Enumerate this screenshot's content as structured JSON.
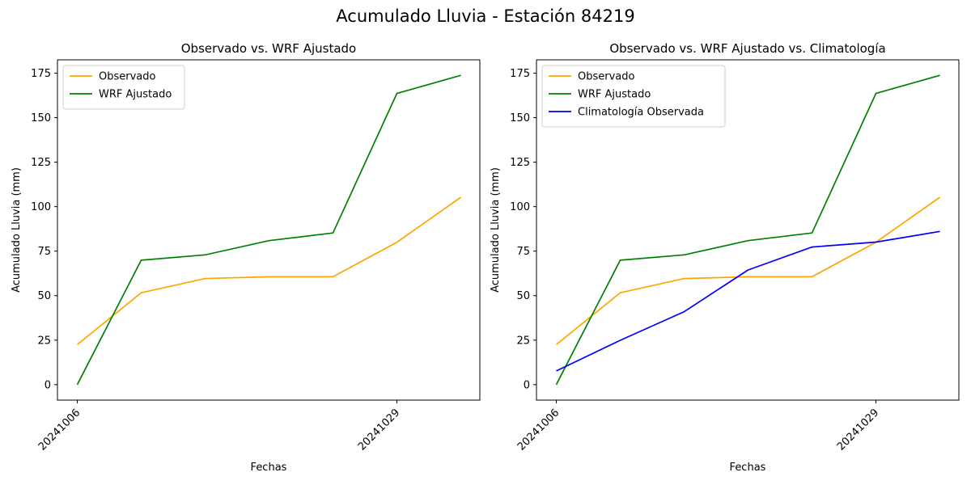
{
  "suptitle": "Acumulado Lluvia - Estación 84219",
  "chart_data": [
    {
      "type": "line",
      "title": "Observado vs. WRF Ajustado",
      "xlabel": "Fechas",
      "ylabel": "Acumulado Lluvia (mm)",
      "x_tick_labels": [
        "20241006",
        "20241029"
      ],
      "y_ticks": [
        0,
        25,
        50,
        75,
        100,
        125,
        150,
        175
      ],
      "ylim": [
        -8.7,
        182.5
      ],
      "legend_position": "upper-left",
      "series": [
        {
          "name": "Observado",
          "color": "#FFA500",
          "values": [
            22.5,
            51.6,
            59.6,
            60.6,
            60.6,
            80.0,
            105.3
          ]
        },
        {
          "name": "WRF Ajustado",
          "color": "#008000",
          "values": [
            0.0,
            69.9,
            72.9,
            80.9,
            85.2,
            163.6,
            173.8
          ]
        }
      ]
    },
    {
      "type": "line",
      "title": "Observado vs. WRF Ajustado vs. Climatología",
      "xlabel": "Fechas",
      "ylabel": "Acumulado Lluvia (mm)",
      "x_tick_labels": [
        "20241006",
        "20241029"
      ],
      "y_ticks": [
        0,
        25,
        50,
        75,
        100,
        125,
        150,
        175
      ],
      "ylim": [
        -8.7,
        182.5
      ],
      "legend_position": "upper-left",
      "series": [
        {
          "name": "Observado",
          "color": "#FFA500",
          "values": [
            22.5,
            51.6,
            59.6,
            60.6,
            60.6,
            80.0,
            105.3
          ]
        },
        {
          "name": "WRF Ajustado",
          "color": "#008000",
          "values": [
            0.0,
            69.9,
            72.9,
            80.9,
            85.2,
            163.6,
            173.8
          ]
        },
        {
          "name": "Climatología Observada",
          "color": "#0000FF",
          "values": [
            7.7,
            24.9,
            41.0,
            64.4,
            77.3,
            80.1,
            86.1
          ]
        }
      ]
    }
  ]
}
